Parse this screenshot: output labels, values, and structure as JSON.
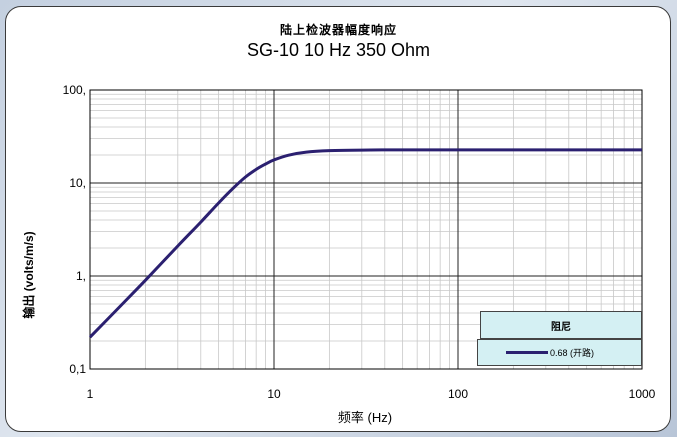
{
  "chart_data": {
    "type": "line",
    "title": "陆上检波器幅度响应",
    "subtitle": "SG-10  10 Hz  350 Ohm",
    "xlabel": "频率 (Hz)",
    "ylabel": "输出 (volts/m/s)",
    "x_scale": "log",
    "y_scale": "log",
    "xlim": [
      1,
      1000
    ],
    "ylim": [
      0.1,
      100
    ],
    "x_ticks": [
      1,
      10,
      100,
      1000
    ],
    "x_tick_labels": [
      "1",
      "10",
      "100",
      "1000"
    ],
    "y_ticks": [
      0.1,
      1,
      10,
      100
    ],
    "y_tick_labels": [
      "0,1",
      "1,",
      "10,",
      "100,"
    ],
    "grid": true,
    "legend_title": "阻尼",
    "legend_position": "bottom-right",
    "series": [
      {
        "name": "0.68 (开路)",
        "color": "#2b2070",
        "x": [
          1,
          1.5,
          2,
          3,
          4,
          5,
          6,
          7,
          8,
          9,
          10,
          12,
          15,
          20,
          30,
          50,
          100,
          200,
          500,
          1000
        ],
        "y": [
          0.22,
          0.5,
          0.9,
          2.1,
          3.8,
          6.1,
          8.8,
          11.6,
          14.0,
          16.0,
          17.7,
          19.9,
          21.5,
          22.3,
          22.6,
          22.7,
          22.7,
          22.7,
          22.7,
          22.7
        ]
      }
    ]
  }
}
